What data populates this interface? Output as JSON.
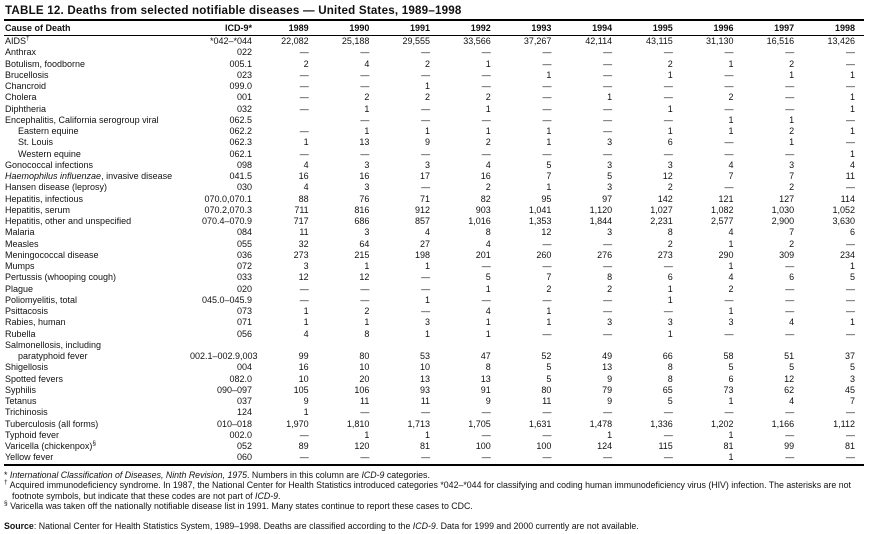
{
  "title": "TABLE 12. Deaths from selected notifiable diseases — United States, 1989–1998",
  "table": {
    "columns": [
      "Cause of Death",
      "ICD-9*",
      "1989",
      "1990",
      "1991",
      "1992",
      "1993",
      "1994",
      "1995",
      "1996",
      "1997",
      "1998"
    ],
    "rows": [
      {
        "cause": "AIDS",
        "sup": "†",
        "icd": "*042–*044",
        "values": [
          "22,082",
          "25,188",
          "29,555",
          "33,566",
          "37,267",
          "42,114",
          "43,115",
          "31,130",
          "16,516",
          "13,426"
        ]
      },
      {
        "cause": "Anthrax",
        "icd": "022",
        "values": [
          "—",
          "—",
          "—",
          "—",
          "—",
          "—",
          "—",
          "—",
          "—",
          "—"
        ]
      },
      {
        "cause": "Botulism, foodborne",
        "icd": "005.1",
        "values": [
          "2",
          "4",
          "2",
          "1",
          "—",
          "—",
          "2",
          "1",
          "2",
          "—"
        ]
      },
      {
        "cause": "Brucellosis",
        "icd": "023",
        "values": [
          "—",
          "—",
          "—",
          "—",
          "1",
          "—",
          "1",
          "—",
          "1",
          "1"
        ]
      },
      {
        "cause": "Chancroid",
        "icd": "099.0",
        "values": [
          "—",
          "—",
          "1",
          "—",
          "—",
          "—",
          "—",
          "—",
          "—",
          "—"
        ]
      },
      {
        "cause": "Cholera",
        "icd": "001",
        "values": [
          "—",
          "2",
          "2",
          "2",
          "—",
          "1",
          "—",
          "2",
          "—",
          "1"
        ]
      },
      {
        "cause": "Diphtheria",
        "icd": "032",
        "values": [
          "—",
          "1",
          "—",
          "1",
          "—",
          "—",
          "1",
          "—",
          "—",
          "1"
        ]
      },
      {
        "cause": "Encephalitis, California serogroup viral",
        "icd": "062.5",
        "values": [
          "",
          "—",
          "—",
          "—",
          "—",
          "—",
          "—",
          "1",
          "1",
          "—"
        ]
      },
      {
        "cause": "Eastern equine",
        "indent": true,
        "icd": "062.2",
        "values": [
          "—",
          "1",
          "1",
          "1",
          "1",
          "—",
          "1",
          "1",
          "2",
          "1"
        ]
      },
      {
        "cause": "St. Louis",
        "indent": true,
        "icd": "062.3",
        "values": [
          "1",
          "13",
          "9",
          "2",
          "1",
          "3",
          "6",
          "—",
          "1",
          "—"
        ]
      },
      {
        "cause": "Western equine",
        "indent": true,
        "icd": "062.1",
        "values": [
          "—",
          "—",
          "—",
          "—",
          "—",
          "—",
          "—",
          "—",
          "—",
          "1"
        ]
      },
      {
        "cause": "Gonococcal infections",
        "icd": "098",
        "values": [
          "4",
          "3",
          "3",
          "4",
          "5",
          "3",
          "3",
          "4",
          "3",
          "4"
        ]
      },
      {
        "cause": [
          {
            "t": "Haemophilus influenzae",
            "i": true
          },
          {
            "t": ", invasive disease"
          }
        ],
        "icd": "041.5",
        "values": [
          "16",
          "16",
          "17",
          "16",
          "7",
          "5",
          "12",
          "7",
          "7",
          "11"
        ]
      },
      {
        "cause": "Hansen disease (leprosy)",
        "icd": "030",
        "values": [
          "4",
          "3",
          "—",
          "2",
          "1",
          "3",
          "2",
          "—",
          "2",
          "—"
        ]
      },
      {
        "cause": "Hepatitis, infectious",
        "icd": "070.0,070.1",
        "values": [
          "88",
          "76",
          "71",
          "82",
          "95",
          "97",
          "142",
          "121",
          "127",
          "114"
        ]
      },
      {
        "cause": "Hepatitis, serum",
        "icd": "070.2,070.3",
        "values": [
          "711",
          "816",
          "912",
          "903",
          "1,041",
          "1,120",
          "1,027",
          "1,082",
          "1,030",
          "1,052"
        ]
      },
      {
        "cause": "Hepatitis, other and unspecified",
        "icd": "070.4–070.9",
        "values": [
          "717",
          "686",
          "857",
          "1,016",
          "1,353",
          "1,844",
          "2,231",
          "2,577",
          "2,900",
          "3,630"
        ]
      },
      {
        "cause": "Malaria",
        "icd": "084",
        "values": [
          "11",
          "3",
          "4",
          "8",
          "12",
          "3",
          "8",
          "4",
          "7",
          "6"
        ]
      },
      {
        "cause": "Measles",
        "icd": "055",
        "values": [
          "32",
          "64",
          "27",
          "4",
          "—",
          "—",
          "2",
          "1",
          "2",
          "—"
        ]
      },
      {
        "cause": "Meningococcal disease",
        "icd": "036",
        "values": [
          "273",
          "215",
          "198",
          "201",
          "260",
          "276",
          "273",
          "290",
          "309",
          "234"
        ]
      },
      {
        "cause": "Mumps",
        "icd": "072",
        "values": [
          "3",
          "1",
          "1",
          "—",
          "—",
          "—",
          "—",
          "1",
          "—",
          "1"
        ]
      },
      {
        "cause": "Pertussis (whooping cough)",
        "icd": "033",
        "values": [
          "12",
          "12",
          "—",
          "5",
          "7",
          "8",
          "6",
          "4",
          "6",
          "5"
        ]
      },
      {
        "cause": "Plague",
        "icd": "020",
        "values": [
          "—",
          "—",
          "—",
          "1",
          "2",
          "2",
          "1",
          "2",
          "—",
          "—"
        ]
      },
      {
        "cause": "Poliomyelitis, total",
        "icd": "045.0–045.9",
        "values": [
          "—",
          "—",
          "1",
          "—",
          "—",
          "—",
          "1",
          "—",
          "—",
          "—"
        ]
      },
      {
        "cause": "Psittacosis",
        "icd": "073",
        "values": [
          "1",
          "2",
          "—",
          "4",
          "1",
          "—",
          "—",
          "1",
          "—",
          "—"
        ]
      },
      {
        "cause": "Rabies, human",
        "icd": "071",
        "values": [
          "1",
          "1",
          "3",
          "1",
          "1",
          "3",
          "3",
          "3",
          "4",
          "1"
        ]
      },
      {
        "cause": "Rubella",
        "icd": "056",
        "values": [
          "4",
          "8",
          "1",
          "1",
          "—",
          "—",
          "1",
          "—",
          "—",
          "—"
        ]
      },
      {
        "cause": "Salmonellosis, including",
        "cause2": "paratyphoid fever",
        "icd": "002.1–002.9,003",
        "values": [
          "99",
          "80",
          "53",
          "47",
          "52",
          "49",
          "66",
          "58",
          "51",
          "37"
        ]
      },
      {
        "cause": "Shigellosis",
        "icd": "004",
        "values": [
          "16",
          "10",
          "10",
          "8",
          "5",
          "13",
          "8",
          "5",
          "5",
          "5"
        ]
      },
      {
        "cause": "Spotted fevers",
        "icd": "082.0",
        "values": [
          "10",
          "20",
          "13",
          "13",
          "5",
          "9",
          "8",
          "6",
          "12",
          "3"
        ]
      },
      {
        "cause": "Syphilis",
        "icd": "090–097",
        "values": [
          "105",
          "106",
          "93",
          "91",
          "80",
          "79",
          "65",
          "73",
          "62",
          "45"
        ]
      },
      {
        "cause": "Tetanus",
        "icd": "037",
        "values": [
          "9",
          "11",
          "11",
          "9",
          "11",
          "9",
          "5",
          "1",
          "4",
          "7"
        ]
      },
      {
        "cause": "Trichinosis",
        "icd": "124",
        "values": [
          "1",
          "—",
          "—",
          "—",
          "—",
          "—",
          "—",
          "—",
          "—",
          "—"
        ]
      },
      {
        "cause": "Tuberculosis (all forms)",
        "icd": "010–018",
        "values": [
          "1,970",
          "1,810",
          "1,713",
          "1,705",
          "1,631",
          "1,478",
          "1,336",
          "1,202",
          "1,166",
          "1,112"
        ]
      },
      {
        "cause": "Typhoid fever",
        "icd": "002.0",
        "values": [
          "—",
          "1",
          "1",
          "—",
          "—",
          "1",
          "—",
          "1",
          "—",
          "—"
        ]
      },
      {
        "cause": "Varicella (chickenpox)",
        "sup": "§",
        "icd": "052",
        "values": [
          "89",
          "120",
          "81",
          "100",
          "100",
          "124",
          "115",
          "81",
          "99",
          "81"
        ]
      },
      {
        "cause": "Yellow fever",
        "icd": "060",
        "values": [
          "—",
          "—",
          "—",
          "—",
          "—",
          "—",
          "—",
          "1",
          "—",
          "—"
        ]
      }
    ]
  },
  "footnotes": [
    {
      "segments": [
        {
          "t": "* "
        },
        {
          "t": "International Classification of Diseases, Ninth Revision, 1975",
          "i": true
        },
        {
          "t": ". Numbers in this column are "
        },
        {
          "t": "ICD-9",
          "i": true
        },
        {
          "t": " categories."
        }
      ]
    },
    {
      "segments": [
        {
          "t": "†",
          "sup": true
        },
        {
          "t": " Acquired immunodeficiency syndrome.  In 1987, the National Center for Health Statistics introduced categories *042–*044 for classifying and coding human immunodeficiency virus (HIV) infection. The asterisks are not footnote symbols, but indicate that these codes are not part of "
        },
        {
          "t": "ICD-9",
          "i": true
        },
        {
          "t": "."
        }
      ]
    },
    {
      "segments": [
        {
          "t": "§",
          "sup": true
        },
        {
          "t": " Varicella was taken off the nationally notifiable disease list in 1991. Many states continue to report these cases to CDC."
        }
      ]
    }
  ],
  "source": {
    "segments": [
      {
        "t": "Source",
        "b": true
      },
      {
        "t": ": National Center for Health Statistics System, 1989–1998. Deaths are classified according to the "
      },
      {
        "t": "ICD-9",
        "i": true
      },
      {
        "t": ". Data for 1999 and 2000 currently are not available."
      }
    ]
  }
}
